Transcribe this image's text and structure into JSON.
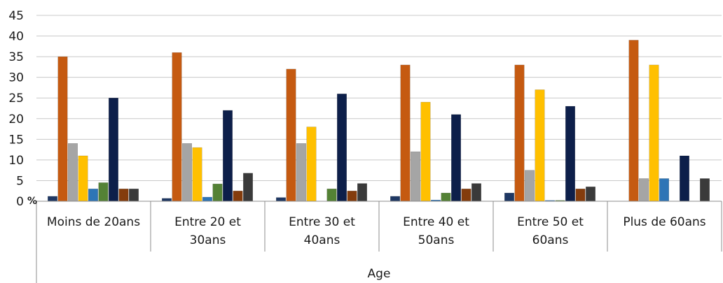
{
  "chart_data": {
    "type": "bar",
    "title": "",
    "xlabel": "Age",
    "ylabel": "",
    "y_unit": "%",
    "ylim": [
      0,
      45
    ],
    "y_ticks": [
      "0",
      "5",
      "10",
      "15",
      "20",
      "25",
      "30",
      "35",
      "40",
      "45"
    ],
    "grid": true,
    "categories": [
      [
        "Moins de 20ans"
      ],
      [
        "Entre 20 et",
        "30ans"
      ],
      [
        "Entre 30 et",
        "40ans"
      ],
      [
        "Entre 40 et",
        "50ans"
      ],
      [
        "Entre 50 et",
        "60ans"
      ],
      [
        "Plus de 60ans"
      ]
    ],
    "series": [
      {
        "color": "#1f3864",
        "values": [
          1.2,
          0.7,
          0.9,
          1.2,
          2.0,
          0
        ]
      },
      {
        "color": "#c55a11",
        "values": [
          35,
          36,
          32,
          33,
          33,
          39
        ]
      },
      {
        "color": "#a5a5a5",
        "values": [
          14,
          14,
          14,
          12,
          7.5,
          5.5
        ]
      },
      {
        "color": "#ffc000",
        "values": [
          11,
          13,
          18,
          24,
          27,
          33
        ]
      },
      {
        "color": "#2e75b6",
        "values": [
          3,
          1,
          0,
          0.3,
          0.2,
          5.5
        ]
      },
      {
        "color": "#548235",
        "values": [
          4.5,
          4.2,
          3,
          2,
          0.2,
          0
        ]
      },
      {
        "color": "#0d1f4a",
        "values": [
          25,
          22,
          26,
          21,
          23,
          11
        ]
      },
      {
        "color": "#843c0c",
        "values": [
          3,
          2.5,
          2.5,
          3,
          3,
          0
        ]
      },
      {
        "color": "#3a3a3a",
        "values": [
          3,
          6.8,
          4.3,
          4.3,
          3.5,
          5.5
        ]
      }
    ]
  }
}
